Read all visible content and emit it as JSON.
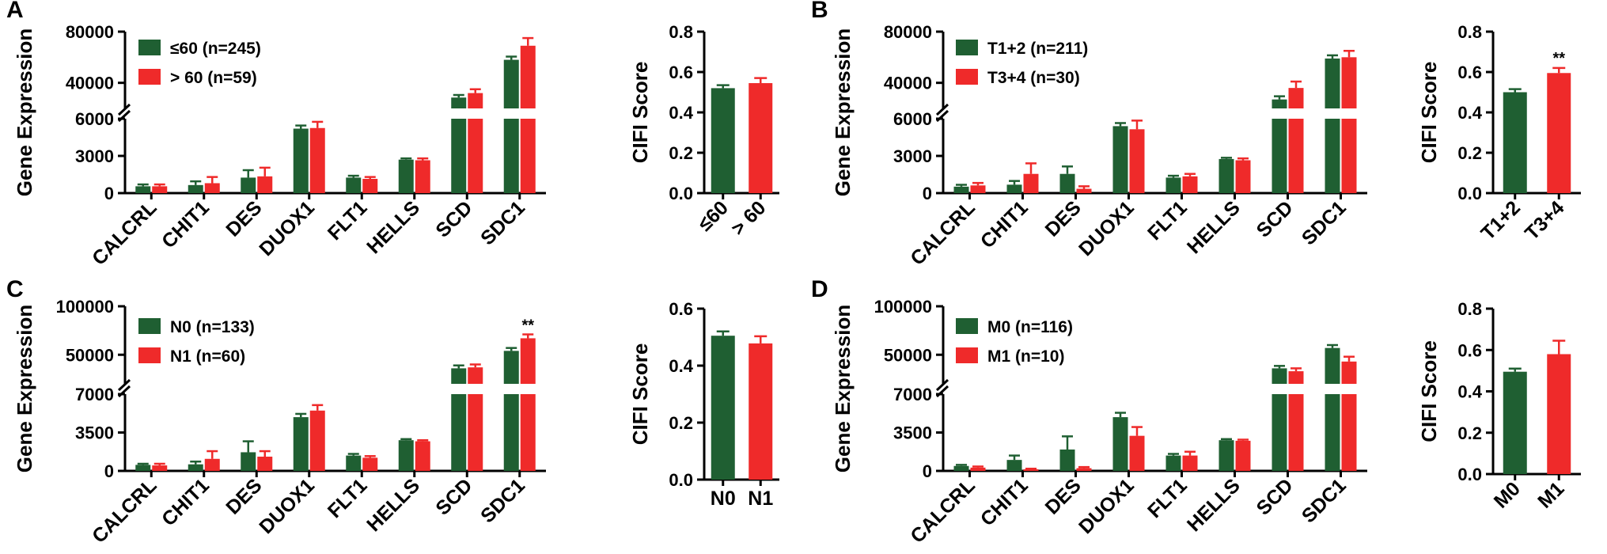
{
  "colors": {
    "group1": "#1f5f32",
    "group2": "#ef2a2a"
  },
  "chart_data": [
    {
      "panel": "A",
      "type": "bar",
      "ylabel": "Gene Expression",
      "categories": [
        "CALCRL",
        "CHIT1",
        "DES",
        "DUOX1",
        "FLT1",
        "HELLS",
        "SCD",
        "SDC1"
      ],
      "ylim_lower": [
        0,
        6000
      ],
      "ylim_upper": [
        20000,
        80000
      ],
      "yticks_lower": [
        "0",
        "3000",
        "6000"
      ],
      "yticks_upper": [
        "40000",
        "80000"
      ],
      "series": [
        {
          "name": "≤60 (n=245)",
          "values": [
            550,
            650,
            1250,
            5200,
            1250,
            2700,
            28500,
            58000
          ],
          "errors": [
            150,
            300,
            600,
            250,
            150,
            100,
            2000,
            2500
          ]
        },
        {
          "name": "> 60 (n=59)",
          "values": [
            550,
            800,
            1350,
            5250,
            1150,
            2650,
            32000,
            69000
          ],
          "errors": [
            150,
            500,
            700,
            500,
            150,
            150,
            3000,
            6000
          ]
        }
      ],
      "significance": [
        null,
        null,
        null,
        null,
        null,
        null,
        null,
        null
      ],
      "side": {
        "ylabel": "CIFI Score",
        "ylim": [
          0,
          0.8
        ],
        "yticks": [
          "0.0",
          "0.2",
          "0.4",
          "0.6",
          "0.8"
        ],
        "categories": [
          "≤60",
          "> 60"
        ],
        "values": [
          0.52,
          0.545
        ],
        "errors": [
          0.015,
          0.025
        ],
        "significance": [
          null,
          null
        ]
      }
    },
    {
      "panel": "B",
      "type": "bar",
      "ylabel": "Gene Expression",
      "categories": [
        "CALCRL",
        "CHIT1",
        "DES",
        "DUOX1",
        "FLT1",
        "HELLS",
        "SCD",
        "SDC1"
      ],
      "ylim_lower": [
        0,
        6000
      ],
      "ylim_upper": [
        20000,
        80000
      ],
      "yticks_lower": [
        "0",
        "3000",
        "6000"
      ],
      "yticks_upper": [
        "40000",
        "80000"
      ],
      "series": [
        {
          "name": "T1+2 (n=211)",
          "values": [
            520,
            680,
            1550,
            5400,
            1250,
            2750,
            27000,
            59000
          ],
          "errors": [
            150,
            300,
            600,
            250,
            150,
            100,
            2500,
            2500
          ]
        },
        {
          "name": "T3+4 (n=30)",
          "values": [
            620,
            1550,
            350,
            5150,
            1350,
            2650,
            36000,
            60000
          ],
          "errors": [
            200,
            850,
            200,
            700,
            200,
            150,
            5000,
            5000
          ]
        }
      ],
      "significance": [
        null,
        null,
        null,
        null,
        null,
        null,
        null,
        null
      ],
      "side": {
        "ylabel": "CIFI Score",
        "ylim": [
          0,
          0.8
        ],
        "yticks": [
          "0.0",
          "0.2",
          "0.4",
          "0.6",
          "0.8"
        ],
        "categories": [
          "T1+2",
          "T3+4"
        ],
        "values": [
          0.5,
          0.595
        ],
        "errors": [
          0.015,
          0.025
        ],
        "significance": [
          null,
          "**"
        ]
      }
    },
    {
      "panel": "C",
      "type": "bar",
      "ylabel": "Gene Expression",
      "categories": [
        "CALCRL",
        "CHIT1",
        "DES",
        "DUOX1",
        "FLT1",
        "HELLS",
        "SCD",
        "SDC1"
      ],
      "ylim_lower": [
        0,
        7000
      ],
      "ylim_upper": [
        20000,
        100000
      ],
      "yticks_lower": [
        "0",
        "3500",
        "7000"
      ],
      "yticks_upper": [
        "50000",
        "100000"
      ],
      "series": [
        {
          "name": "N0 (n=133)",
          "values": [
            550,
            600,
            1700,
            4900,
            1400,
            2800,
            36000,
            54000
          ],
          "errors": [
            100,
            250,
            1000,
            300,
            150,
            100,
            3000,
            3000
          ]
        },
        {
          "name": "N1 (n=60)",
          "values": [
            500,
            1100,
            1300,
            5500,
            1200,
            2700,
            37000,
            67000
          ],
          "errors": [
            150,
            700,
            500,
            500,
            150,
            100,
            3000,
            4000
          ]
        }
      ],
      "significance": [
        null,
        null,
        null,
        null,
        null,
        null,
        null,
        "**"
      ],
      "side": {
        "ylabel": "CIFI Score",
        "ylim": [
          0,
          0.6
        ],
        "yticks": [
          "0.0",
          "0.2",
          "0.4",
          "0.6"
        ],
        "categories": [
          "N0",
          "N1"
        ],
        "values": [
          0.505,
          0.478
        ],
        "errors": [
          0.015,
          0.025
        ],
        "significance": [
          null,
          null
        ]
      }
    },
    {
      "panel": "D",
      "type": "bar",
      "ylabel": "Gene Expression",
      "categories": [
        "CALCRL",
        "CHIT1",
        "DES",
        "DUOX1",
        "FLT1",
        "HELLS",
        "SCD",
        "SDC1"
      ],
      "ylim_lower": [
        0,
        7000
      ],
      "ylim_upper": [
        20000,
        100000
      ],
      "yticks_lower": [
        "0",
        "3500",
        "7000"
      ],
      "yticks_upper": [
        "50000",
        "100000"
      ],
      "series": [
        {
          "name": "M0 (n=116)",
          "values": [
            450,
            1000,
            1950,
            4900,
            1400,
            2800,
            36000,
            57000
          ],
          "errors": [
            100,
            400,
            1200,
            400,
            150,
            100,
            2500,
            3000
          ]
        },
        {
          "name": "M1 (n=10)",
          "values": [
            300,
            150,
            250,
            3200,
            1400,
            2750,
            33000,
            43000
          ],
          "errors": [
            100,
            50,
            100,
            800,
            350,
            100,
            3000,
            5000
          ]
        }
      ],
      "significance": [
        null,
        null,
        null,
        null,
        null,
        null,
        null,
        null
      ],
      "side": {
        "ylabel": "CIFI Score",
        "ylim": [
          0,
          0.8
        ],
        "yticks": [
          "0.0",
          "0.2",
          "0.4",
          "0.6",
          "0.8"
        ],
        "categories": [
          "M0",
          "M1"
        ],
        "values": [
          0.495,
          0.58
        ],
        "errors": [
          0.015,
          0.065
        ],
        "significance": [
          null,
          null
        ]
      }
    }
  ]
}
